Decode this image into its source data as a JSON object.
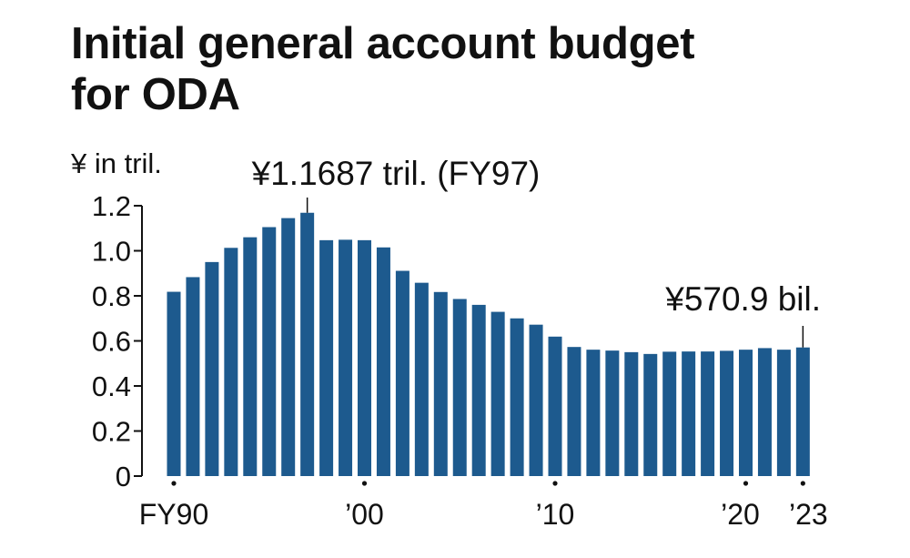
{
  "title_lines": [
    "Initial general account budget",
    "for ODA"
  ],
  "chart_data": {
    "type": "bar",
    "title": "Initial general account budget for ODA",
    "ylabel": "¥ in tril.",
    "ylim": [
      0,
      1.2
    ],
    "yticks": [
      0,
      0.2,
      0.4,
      0.6,
      0.8,
      1.0,
      1.2
    ],
    "ytick_labels": [
      "0",
      "0.2",
      "0.4",
      "0.6",
      "0.8",
      "1.0",
      "1.2"
    ],
    "categories": [
      "FY90",
      "FY91",
      "FY92",
      "FY93",
      "FY94",
      "FY95",
      "FY96",
      "FY97",
      "FY98",
      "FY99",
      "FY00",
      "FY01",
      "FY02",
      "FY03",
      "FY04",
      "FY05",
      "FY06",
      "FY07",
      "FY08",
      "FY09",
      "FY10",
      "FY11",
      "FY12",
      "FY13",
      "FY14",
      "FY15",
      "FY16",
      "FY17",
      "FY18",
      "FY19",
      "FY20",
      "FY21",
      "FY22",
      "FY23"
    ],
    "values": [
      0.818,
      0.883,
      0.95,
      1.013,
      1.06,
      1.105,
      1.145,
      1.1687,
      1.047,
      1.049,
      1.047,
      1.015,
      0.911,
      0.858,
      0.817,
      0.786,
      0.76,
      0.729,
      0.7,
      0.672,
      0.619,
      0.573,
      0.561,
      0.557,
      0.55,
      0.542,
      0.552,
      0.553,
      0.553,
      0.556,
      0.561,
      0.568,
      0.561,
      0.5709
    ],
    "xtick_labels": [
      {
        "index": 0,
        "label": "FY90"
      },
      {
        "index": 10,
        "label": "’00"
      },
      {
        "index": 20,
        "label": "’10"
      },
      {
        "index": 30,
        "label": "’20"
      },
      {
        "index": 33,
        "label": "’23"
      }
    ],
    "annotations": [
      {
        "index": 7,
        "text": "¥1.1687 tril. (FY97)"
      },
      {
        "index": 33,
        "text": "¥570.9 bil."
      }
    ],
    "bar_color": "#1d5a8e",
    "grid": false,
    "legend": "none"
  }
}
